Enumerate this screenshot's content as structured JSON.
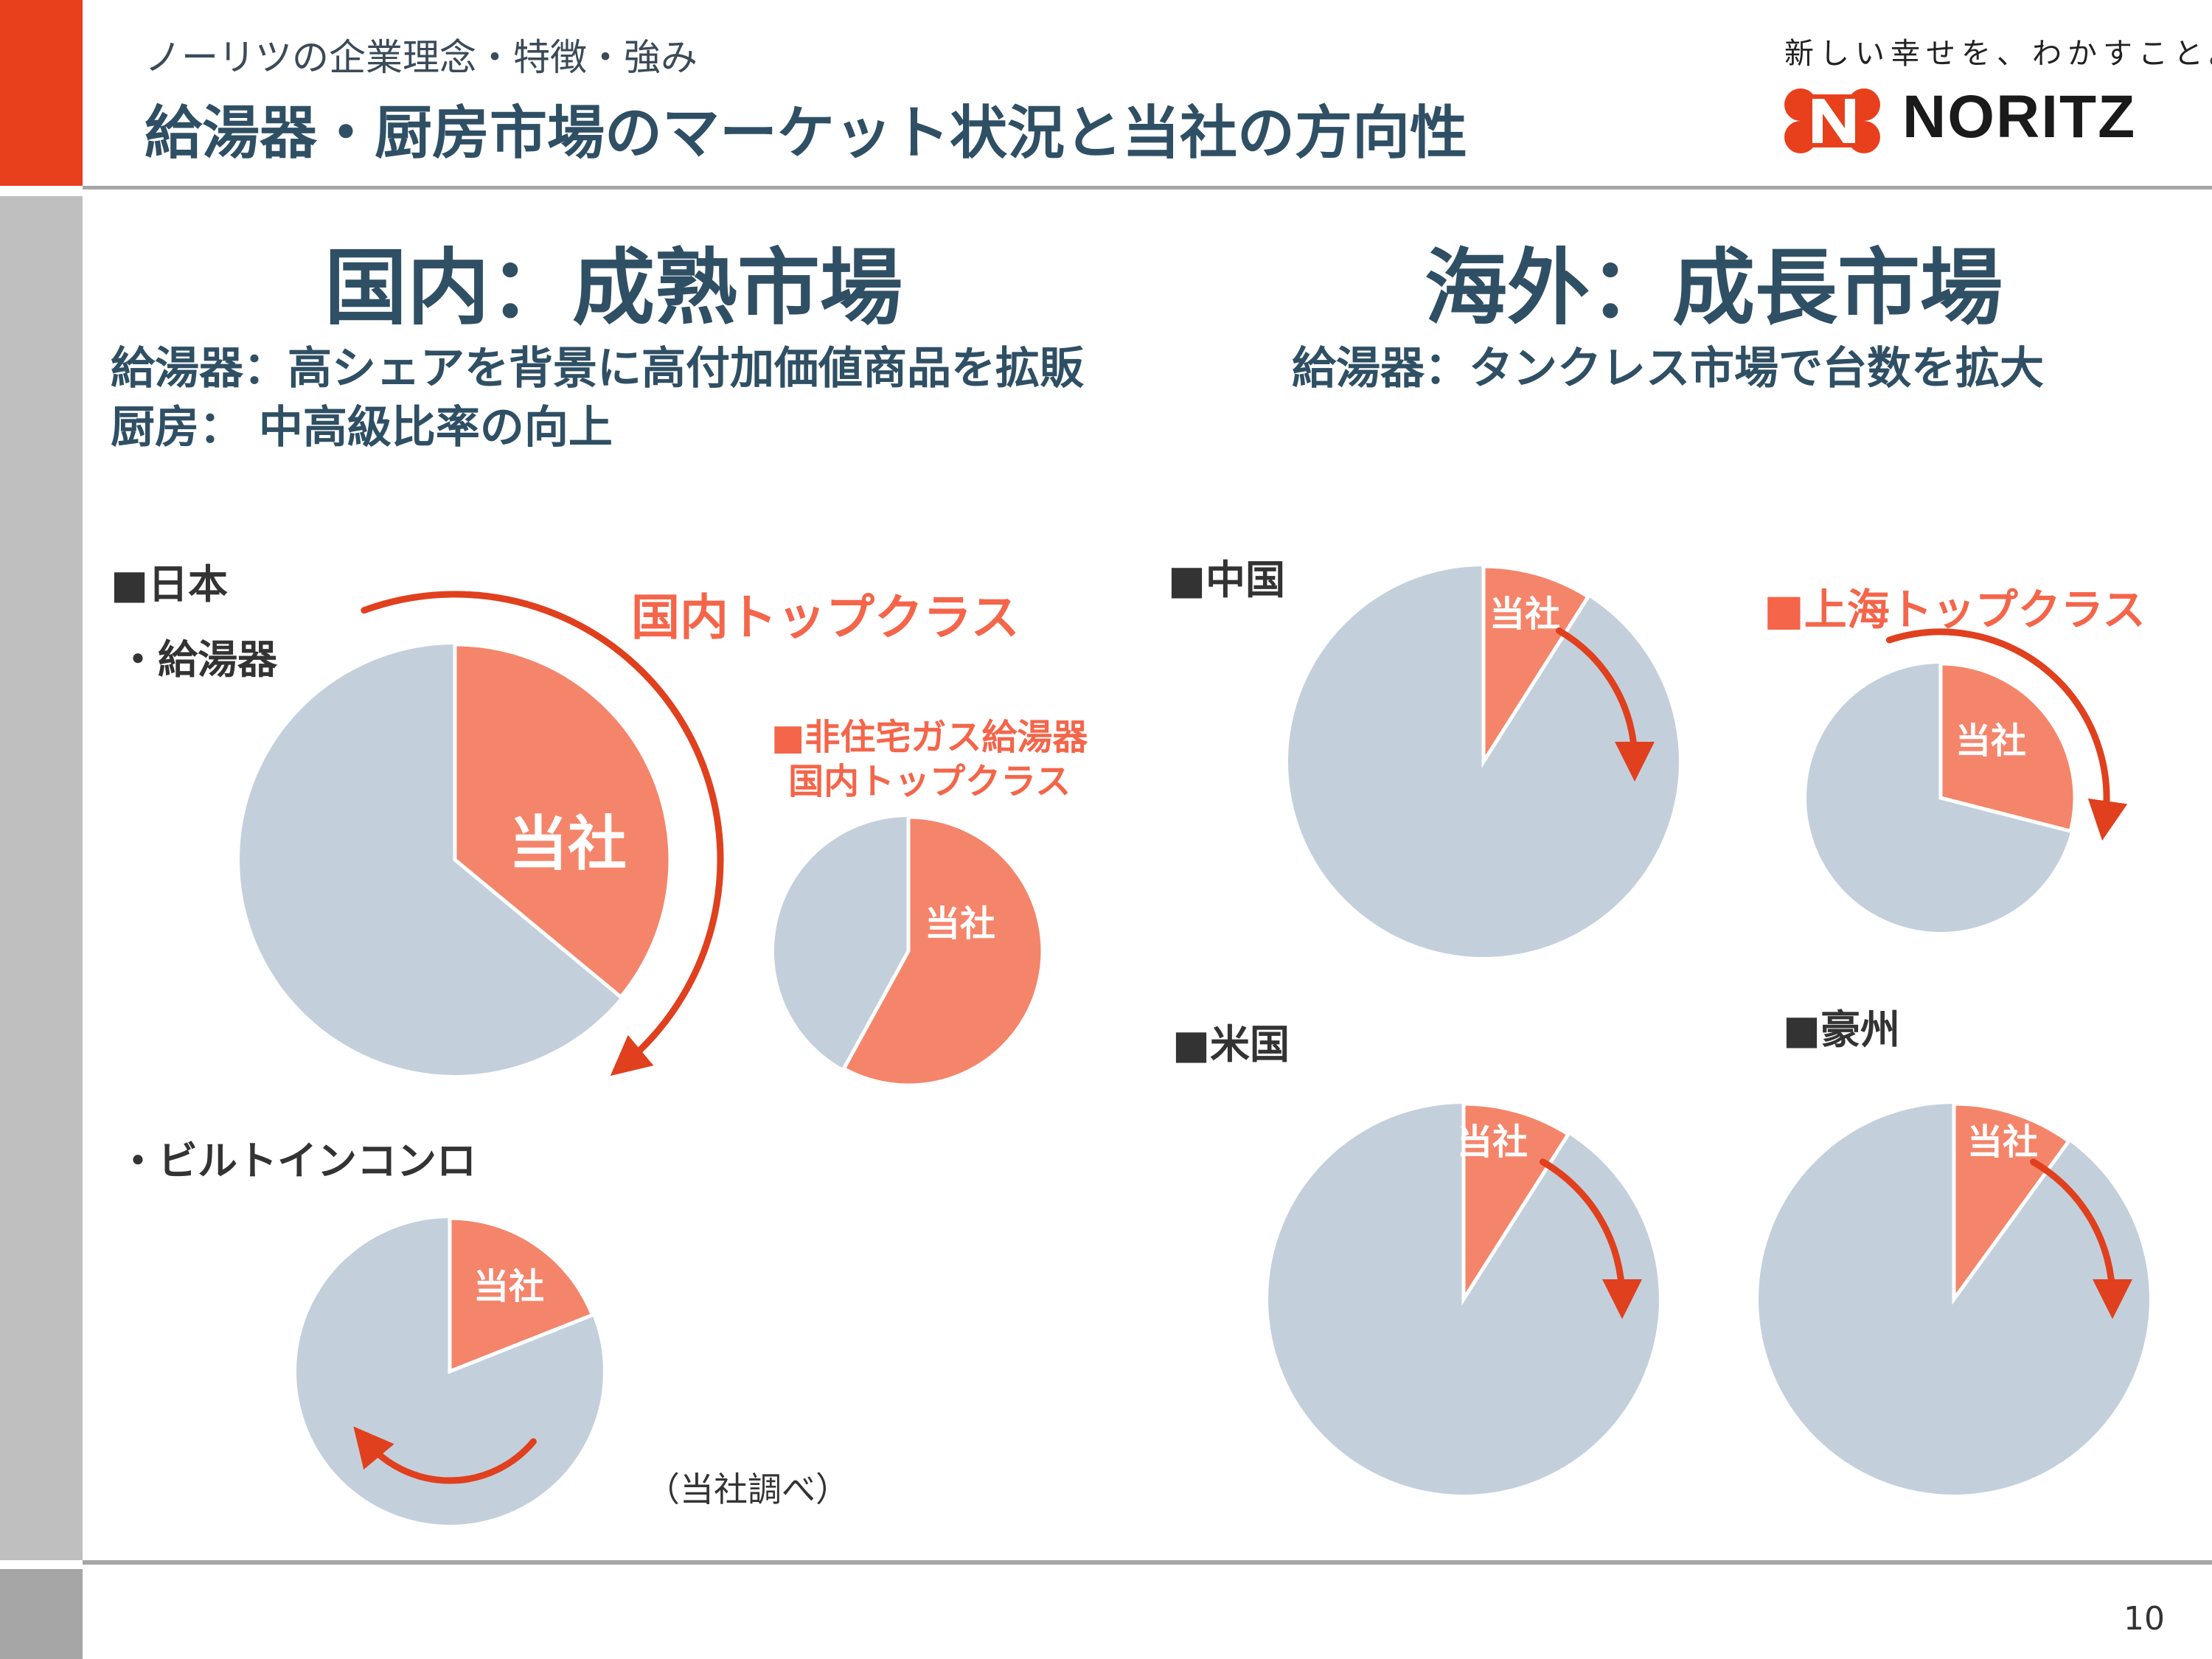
{
  "header": {
    "subtitle": "ノーリツの企業理念・特徴・強み",
    "title": "給湯器・厨房市場のマーケット状況と当社の方向性",
    "tagline": "新しい幸せを、わかすこと。",
    "logo": "NORITZ"
  },
  "domestic": {
    "heading": "国内：成熟市場",
    "line1": "給湯器：高シェアを背景に高付加価値商品を拡販",
    "line2": "厨房： 中高級比率の向上",
    "region": "■日本",
    "water_heater_label": "・給湯器",
    "top_class_label": "国内トップクラス",
    "nonres_line1": "■非住宅ガス給湯器",
    "nonres_line2": "国内トップクラス",
    "stove_label": "・ビルトインコンロ",
    "source_note": "（当社調べ）"
  },
  "overseas": {
    "heading": "海外：成長市場",
    "line1": "給湯器：タンクレス市場で台数を拡大",
    "china": "■中国",
    "shanghai": "■上海トップクラス",
    "usa": "■米国",
    "australia": "■豪州"
  },
  "page_number": "10",
  "colors": {
    "company": "#F4856B",
    "others": "#C3D0DB",
    "arrow": "#E0401E",
    "accent": "#E8401C",
    "heading": "#2F4F64"
  },
  "chart_data": [
    {
      "type": "pie",
      "name": "日本 給湯器",
      "labels": [
        "当社",
        ""
      ],
      "values": [
        36,
        64
      ]
    },
    {
      "type": "pie",
      "name": "非住宅ガス給湯器",
      "labels": [
        "当社",
        ""
      ],
      "values": [
        58,
        42
      ]
    },
    {
      "type": "pie",
      "name": "ビルトインコンロ",
      "labels": [
        "当社",
        ""
      ],
      "values": [
        19,
        81
      ]
    },
    {
      "type": "pie",
      "name": "中国",
      "labels": [
        "当社",
        ""
      ],
      "values": [
        9,
        91
      ]
    },
    {
      "type": "pie",
      "name": "上海",
      "labels": [
        "当社",
        ""
      ],
      "values": [
        29,
        71
      ]
    },
    {
      "type": "pie",
      "name": "米国",
      "labels": [
        "当社",
        ""
      ],
      "values": [
        9,
        91
      ]
    },
    {
      "type": "pie",
      "name": "豪州",
      "labels": [
        "当社",
        ""
      ],
      "values": [
        10,
        90
      ]
    }
  ]
}
